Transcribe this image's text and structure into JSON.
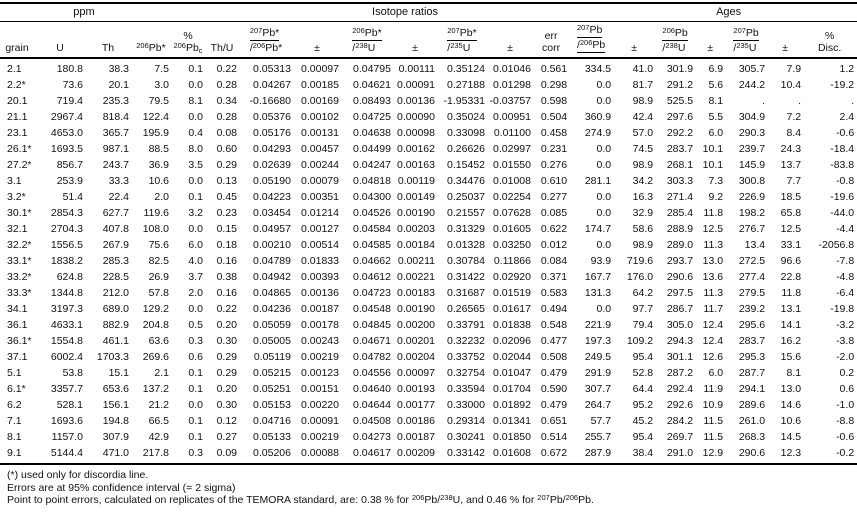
{
  "table": {
    "group_headers": {
      "ppm": "ppm",
      "isotope_ratios": "Isotope ratios",
      "ages": "Ages"
    },
    "header": {
      "grain": "grain",
      "u": "U",
      "th": "Th",
      "pb206": {
        "sup": "206",
        "base": "Pb*"
      },
      "pbc": {
        "line1": "%",
        "sup": "206",
        "base": "Pb",
        "sub": "c"
      },
      "thu": "Th/U",
      "pm": "±",
      "r76": {
        "num_sup": "207",
        "num_base": "Pb*",
        "den_pre": "/",
        "den_sup": "206",
        "den_base": "Pb*"
      },
      "r68": {
        "num_sup": "206",
        "num_base": "Pb*",
        "den_pre": "/",
        "den_sup": "238",
        "den_base": "U"
      },
      "r75": {
        "num_sup": "207",
        "num_base": "Pb*",
        "den_pre": "/",
        "den_sup": "235",
        "den_base": "U"
      },
      "errcorr": {
        "line1": "err",
        "line2": "corr"
      },
      "a76": {
        "num_sup": "207",
        "num_base": "Pb",
        "den_pre": "/",
        "den_sup": "206",
        "den_base": "Pb"
      },
      "a68": {
        "num_sup": "206",
        "num_base": "Pb",
        "den_pre": "/",
        "den_sup": "238",
        "den_base": "U"
      },
      "a75": {
        "num_sup": "207",
        "num_base": "Pb",
        "den_pre": "/",
        "den_sup": "235",
        "den_base": "U"
      },
      "disc": {
        "line1": "%",
        "line2": "Disc."
      }
    },
    "rows": [
      [
        "2.1",
        "180.8",
        "38.3",
        "7.5",
        "0.1",
        "0.22",
        "0.05313",
        "0.00097",
        "0.04795",
        "0.00111",
        "0.35124",
        "0.01046",
        "0.561",
        "334.5",
        "41.0",
        "301.9",
        "6.9",
        "305.7",
        "7.9",
        "1.2"
      ],
      [
        "2.2*",
        "73.6",
        "20.1",
        "3.0",
        "0.0",
        "0.28",
        "0.04267",
        "0.00185",
        "0.04621",
        "0.00091",
        "0.27188",
        "0.01298",
        "0.298",
        "0.0",
        "81.7",
        "291.2",
        "5.6",
        "244.2",
        "10.4",
        "-19.2"
      ],
      [
        "20.1",
        "719.4",
        "235.3",
        "79.5",
        "8.1",
        "0.34",
        "-0.16680",
        "0.00169",
        "0.08493",
        "0.00136",
        "-1.95331",
        "-0.03757",
        "0.598",
        "0.0",
        "98.9",
        "525.5",
        "8.1",
        ".",
        ".",
        "."
      ],
      [
        "21.1",
        "2967.4",
        "818.4",
        "122.4",
        "0.0",
        "0.28",
        "0.05376",
        "0.00102",
        "0.04725",
        "0.00090",
        "0.35024",
        "0.00951",
        "0.504",
        "360.9",
        "42.4",
        "297.6",
        "5.5",
        "304.9",
        "7.2",
        "2.4"
      ],
      [
        "23.1",
        "4653.0",
        "365.7",
        "195.9",
        "0.4",
        "0.08",
        "0.05176",
        "0.00131",
        "0.04638",
        "0.00098",
        "0.33098",
        "0.01100",
        "0.458",
        "274.9",
        "57.0",
        "292.2",
        "6.0",
        "290.3",
        "8.4",
        "-0.6"
      ],
      [
        "26.1*",
        "1693.5",
        "987.1",
        "88.5",
        "8.0",
        "0.60",
        "0.04293",
        "0.00457",
        "0.04499",
        "0.00162",
        "0.26626",
        "0.02997",
        "0.231",
        "0.0",
        "74.5",
        "283.7",
        "10.1",
        "239.7",
        "24.3",
        "-18.4"
      ],
      [
        "27.2*",
        "856.7",
        "243.7",
        "36.9",
        "3.5",
        "0.29",
        "0.02639",
        "0.00244",
        "0.04247",
        "0.00163",
        "0.15452",
        "0.01550",
        "0.276",
        "0.0",
        "98.9",
        "268.1",
        "10.1",
        "145.9",
        "13.7",
        "-83.8"
      ],
      [
        "3.1",
        "253.9",
        "33.3",
        "10.6",
        "0.0",
        "0.13",
        "0.05190",
        "0.00079",
        "0.04818",
        "0.00119",
        "0.34476",
        "0.01008",
        "0.610",
        "281.1",
        "34.2",
        "303.3",
        "7.3",
        "300.8",
        "7.7",
        "-0.8"
      ],
      [
        "3.2*",
        "51.4",
        "22.4",
        "2.0",
        "0.1",
        "0.45",
        "0.04223",
        "0.00351",
        "0.04300",
        "0.00149",
        "0.25037",
        "0.02254",
        "0.277",
        "0.0",
        "16.3",
        "271.4",
        "9.2",
        "226.9",
        "18.5",
        "-19.6"
      ],
      [
        "30.1*",
        "2854.3",
        "627.7",
        "119.6",
        "3.2",
        "0.23",
        "0.03454",
        "0.01214",
        "0.04526",
        "0.00190",
        "0.21557",
        "0.07628",
        "0.085",
        "0.0",
        "32.9",
        "285.4",
        "11.8",
        "198.2",
        "65.8",
        "-44.0"
      ],
      [
        "32.1",
        "2704.3",
        "407.8",
        "108.0",
        "0.0",
        "0.15",
        "0.04957",
        "0.00127",
        "0.04584",
        "0.00203",
        "0.31329",
        "0.01605",
        "0.622",
        "174.7",
        "58.6",
        "288.9",
        "12.5",
        "276.7",
        "12.5",
        "-4.4"
      ],
      [
        "32.2*",
        "1556.5",
        "267.9",
        "75.6",
        "6.0",
        "0.18",
        "0.00210",
        "0.00514",
        "0.04585",
        "0.00184",
        "0.01328",
        "0.03250",
        "0.012",
        "0.0",
        "98.9",
        "289.0",
        "11.3",
        "13.4",
        "33.1",
        "-2056.8"
      ],
      [
        "33.1*",
        "1838.2",
        "285.3",
        "82.5",
        "4.0",
        "0.16",
        "0.04789",
        "0.01833",
        "0.04662",
        "0.00211",
        "0.30784",
        "0.11866",
        "0.084",
        "93.9",
        "719.6",
        "293.7",
        "13.0",
        "272.5",
        "96.6",
        "-7.8"
      ],
      [
        "33.2*",
        "624.8",
        "228.5",
        "26.9",
        "3.7",
        "0.38",
        "0.04942",
        "0.00393",
        "0.04612",
        "0.00221",
        "0.31422",
        "0.02920",
        "0.371",
        "167.7",
        "176.0",
        "290.6",
        "13.6",
        "277.4",
        "22.8",
        "-4.8"
      ],
      [
        "33.3*",
        "1344.8",
        "212.0",
        "57.8",
        "2.0",
        "0.16",
        "0.04865",
        "0.00136",
        "0.04723",
        "0.00183",
        "0.31687",
        "0.01519",
        "0.583",
        "131.3",
        "64.2",
        "297.5",
        "11.3",
        "279.5",
        "11.8",
        "-6.4"
      ],
      [
        "34.1",
        "3197.3",
        "689.0",
        "129.2",
        "0.0",
        "0.22",
        "0.04236",
        "0.00187",
        "0.04548",
        "0.00190",
        "0.26565",
        "0.01617",
        "0.494",
        "0.0",
        "97.7",
        "286.7",
        "11.7",
        "239.2",
        "13.1",
        "-19.8"
      ],
      [
        "36.1",
        "4633.1",
        "882.9",
        "204.8",
        "0.5",
        "0.20",
        "0.05059",
        "0.00178",
        "0.04845",
        "0.00200",
        "0.33791",
        "0.01838",
        "0.548",
        "221.9",
        "79.4",
        "305.0",
        "12.4",
        "295.6",
        "14.1",
        "-3.2"
      ],
      [
        "36.1*",
        "1554.8",
        "461.1",
        "63.6",
        "0.3",
        "0.30",
        "0.05005",
        "0.00243",
        "0.04671",
        "0.00201",
        "0.32232",
        "0.02096",
        "0.477",
        "197.3",
        "109.2",
        "294.3",
        "12.4",
        "283.7",
        "16.2",
        "-3.8"
      ],
      [
        "37.1",
        "6002.4",
        "1703.3",
        "269.6",
        "0.6",
        "0.29",
        "0.05119",
        "0.00219",
        "0.04782",
        "0.00204",
        "0.33752",
        "0.02044",
        "0.508",
        "249.5",
        "95.4",
        "301.1",
        "12.6",
        "295.3",
        "15.6",
        "-2.0"
      ],
      [
        "5.1",
        "53.8",
        "15.1",
        "2.1",
        "0.1",
        "0.29",
        "0.05215",
        "0.00123",
        "0.04556",
        "0.00097",
        "0.32754",
        "0.01047",
        "0.479",
        "291.9",
        "52.8",
        "287.2",
        "6.0",
        "287.7",
        "8.1",
        "0.2"
      ],
      [
        "6.1*",
        "3357.7",
        "653.6",
        "137.2",
        "0.1",
        "0.20",
        "0.05251",
        "0.00151",
        "0.04640",
        "0.00193",
        "0.33594",
        "0.01704",
        "0.590",
        "307.7",
        "64.4",
        "292.4",
        "11.9",
        "294.1",
        "13.0",
        "0.6"
      ],
      [
        "6.2",
        "528.1",
        "156.1",
        "21.2",
        "0.0",
        "0.30",
        "0.05153",
        "0.00220",
        "0.04644",
        "0.00177",
        "0.33000",
        "0.01892",
        "0.479",
        "264.7",
        "95.2",
        "292.6",
        "10.9",
        "289.6",
        "14.6",
        "-1.0"
      ],
      [
        "7.1",
        "1693.6",
        "194.8",
        "66.5",
        "0.1",
        "0.12",
        "0.04716",
        "0.00091",
        "0.04508",
        "0.00186",
        "0.29314",
        "0.01341",
        "0.651",
        "57.7",
        "45.2",
        "284.2",
        "11.5",
        "261.0",
        "10.6",
        "-8.8"
      ],
      [
        "8.1",
        "1157.0",
        "307.9",
        "42.9",
        "0.1",
        "0.27",
        "0.05133",
        "0.00219",
        "0.04273",
        "0.00187",
        "0.30241",
        "0.01850",
        "0.514",
        "255.7",
        "95.4",
        "269.7",
        "11.5",
        "268.3",
        "14.5",
        "-0.6"
      ],
      [
        "9.1",
        "5144.4",
        "471.0",
        "217.8",
        "0.3",
        "0.09",
        "0.05206",
        "0.00088",
        "0.04617",
        "0.00209",
        "0.33142",
        "0.01608",
        "0.672",
        "287.9",
        "38.4",
        "291.0",
        "12.9",
        "290.6",
        "12.3",
        "-0.2"
      ]
    ]
  },
  "footnotes": {
    "line1": "(*) used only for discordia line.",
    "line2": "Errors are at 95% confidence interval (= 2 sigma)",
    "line3": {
      "t1": "Point to point errors, calculated on replicates of the TEMORA standard, are: 0.38 % for ",
      "s1": "206",
      "t2": "Pb/",
      "s2": "238",
      "t3": "U, and 0.46 % for ",
      "s3": "207",
      "t4": "Pb/",
      "s4": "206",
      "t5": "Pb."
    }
  }
}
